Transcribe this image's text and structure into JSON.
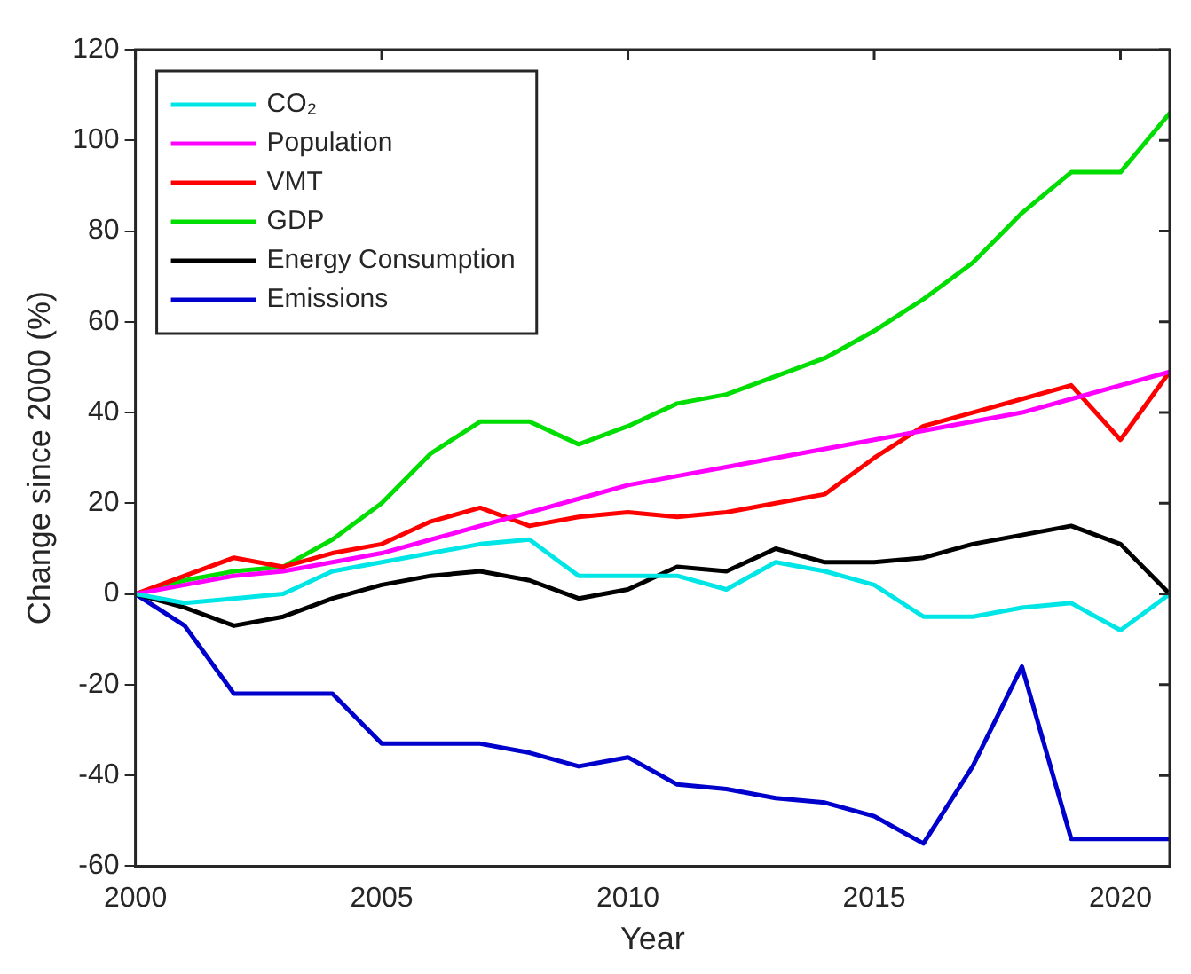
{
  "chart_data": {
    "type": "line",
    "xlabel": "Year",
    "ylabel": "Change since 2000 (%)",
    "x": [
      2000,
      2001,
      2002,
      2003,
      2004,
      2005,
      2006,
      2007,
      2008,
      2009,
      2010,
      2011,
      2012,
      2013,
      2014,
      2015,
      2016,
      2017,
      2018,
      2019,
      2020,
      2021
    ],
    "xlim": [
      2000,
      2021
    ],
    "xticks": [
      2000,
      2005,
      2010,
      2015,
      2020
    ],
    "ylim": [
      -60,
      120
    ],
    "yticks": [
      -60,
      -40,
      -20,
      0,
      20,
      40,
      60,
      80,
      100,
      120
    ],
    "grid": false,
    "legend": "top left",
    "marker": "none",
    "line_style": "solid",
    "series": [
      {
        "name": "CO₂",
        "color": "#00e6e6",
        "values": [
          0,
          -2,
          -1,
          0,
          5,
          7,
          9,
          11,
          12,
          4,
          4,
          4,
          1,
          7,
          5,
          2,
          -5,
          -5,
          -3,
          -2,
          -8,
          0
        ]
      },
      {
        "name": "Population",
        "color": "#ff00ff",
        "values": [
          0,
          2,
          4,
          5,
          7,
          9,
          12,
          15,
          18,
          21,
          24,
          26,
          28,
          30,
          32,
          34,
          36,
          38,
          40,
          43,
          46,
          49
        ]
      },
      {
        "name": "VMT",
        "color": "#ff0000",
        "values": [
          0,
          4,
          8,
          6,
          9,
          11,
          16,
          19,
          15,
          17,
          18,
          17,
          18,
          20,
          22,
          30,
          37,
          40,
          43,
          46,
          34,
          49
        ]
      },
      {
        "name": "GDP",
        "color": "#00dd00",
        "values": [
          0,
          3,
          5,
          6,
          12,
          20,
          31,
          38,
          38,
          33,
          37,
          42,
          44,
          48,
          52,
          58,
          65,
          73,
          84,
          93,
          93,
          106
        ]
      },
      {
        "name": "Energy Consumption",
        "color": "#000000",
        "values": [
          0,
          -3,
          -7,
          -5,
          -1,
          2,
          4,
          5,
          3,
          -1,
          1,
          6,
          5,
          10,
          7,
          7,
          8,
          11,
          13,
          15,
          11,
          0
        ]
      },
      {
        "name": "Emissions",
        "color": "#0000cc",
        "values": [
          0,
          -7,
          -22,
          -22,
          -22,
          -33,
          -33,
          -33,
          -35,
          -38,
          -36,
          -42,
          -43,
          -45,
          -46,
          -49,
          -55,
          -38,
          -16,
          -54,
          -54,
          -54
        ]
      }
    ]
  }
}
